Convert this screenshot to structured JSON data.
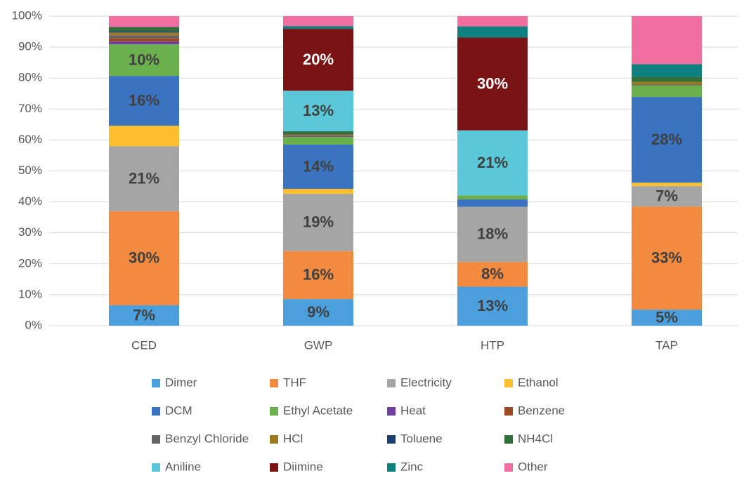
{
  "chart_data": {
    "type": "stacked_bar",
    "categories": [
      "CED",
      "GWP",
      "HTP",
      "TAP"
    ],
    "ylim": [
      0,
      100
    ],
    "yticks": [
      {
        "value": 0,
        "label": "0%"
      },
      {
        "value": 10,
        "label": "10%"
      },
      {
        "value": 20,
        "label": "20%"
      },
      {
        "value": 30,
        "label": "30%"
      },
      {
        "value": 40,
        "label": "40%"
      },
      {
        "value": 50,
        "label": "50%"
      },
      {
        "value": 60,
        "label": "60%"
      },
      {
        "value": 70,
        "label": "70%"
      },
      {
        "value": 80,
        "label": "80%"
      },
      {
        "value": 90,
        "label": "90%"
      },
      {
        "value": 100,
        "label": "100%"
      }
    ],
    "grid": true,
    "series": [
      {
        "name": "Dimer",
        "color": "#4a9fdc",
        "values": [
          6.6,
          8.6,
          12.6,
          5.2
        ],
        "value_labels": [
          "7%",
          "9%",
          "13%",
          "5%"
        ]
      },
      {
        "name": "THF",
        "color": "#f28a3f",
        "values": [
          30.4,
          15.5,
          8.0,
          33.3
        ],
        "value_labels": [
          "30%",
          "16%",
          "8%",
          "33%"
        ]
      },
      {
        "name": "Electricity",
        "color": "#a5a5a5",
        "values": [
          21.0,
          18.5,
          17.8,
          6.6
        ],
        "value_labels": [
          "21%",
          "19%",
          "18%",
          "7%"
        ]
      },
      {
        "name": "Ethanol",
        "color": "#fdbf2d",
        "values": [
          6.6,
          1.6,
          0,
          1.1
        ],
        "value_labels": [
          null,
          null,
          null,
          null
        ]
      },
      {
        "name": "DCM",
        "color": "#3a74c0",
        "values": [
          16.1,
          14.3,
          2.4,
          27.7
        ],
        "value_labels": [
          "16%",
          "14%",
          null,
          "28%"
        ]
      },
      {
        "name": "Ethyl Acetate",
        "color": "#6ab04c",
        "values": [
          10.2,
          2.5,
          1.3,
          3.7
        ],
        "value_labels": [
          "10%",
          null,
          null,
          null
        ]
      },
      {
        "name": "Heat",
        "color": "#6f3fa0",
        "values": [
          0.9,
          0.2,
          0,
          0
        ],
        "value_labels": [
          null,
          null,
          null,
          null
        ]
      },
      {
        "name": "Benzene",
        "color": "#9c4a24",
        "values": [
          1.1,
          0.2,
          0,
          0
        ],
        "value_labels": [
          null,
          null,
          null,
          null
        ]
      },
      {
        "name": "Benzyl Chloride",
        "color": "#636363",
        "values": [
          0.9,
          0.2,
          0,
          0.3
        ],
        "value_labels": [
          null,
          null,
          null,
          null
        ]
      },
      {
        "name": "HCl",
        "color": "#9c7a1f",
        "values": [
          0.9,
          0.2,
          0,
          0.9
        ],
        "value_labels": [
          null,
          null,
          null,
          null
        ]
      },
      {
        "name": "Toluene",
        "color": "#1f3f73",
        "values": [
          0.4,
          0.1,
          0,
          0
        ],
        "value_labels": [
          null,
          null,
          null,
          null
        ]
      },
      {
        "name": "NH4Cl",
        "color": "#2f6f3a",
        "values": [
          1.4,
          0.9,
          0,
          1.6
        ],
        "value_labels": [
          null,
          null,
          null,
          null
        ]
      },
      {
        "name": "Aniline",
        "color": "#5bc8d9",
        "values": [
          0,
          13.1,
          21.0,
          0
        ],
        "value_labels": [
          null,
          "13%",
          "21%",
          null
        ]
      },
      {
        "name": "Diimine",
        "color": "#7a1414",
        "values": [
          0,
          20.0,
          30.0,
          0
        ],
        "value_labels": [
          null,
          "20%",
          "30%",
          null
        ]
      },
      {
        "name": "Zinc",
        "color": "#0f8080",
        "values": [
          0,
          0.9,
          3.6,
          4.1
        ],
        "value_labels": [
          null,
          null,
          null,
          null
        ]
      },
      {
        "name": "Other",
        "color": "#f06fa0",
        "values": [
          3.5,
          3.2,
          3.3,
          15.5
        ],
        "value_labels": [
          null,
          null,
          null,
          null
        ]
      }
    ]
  }
}
